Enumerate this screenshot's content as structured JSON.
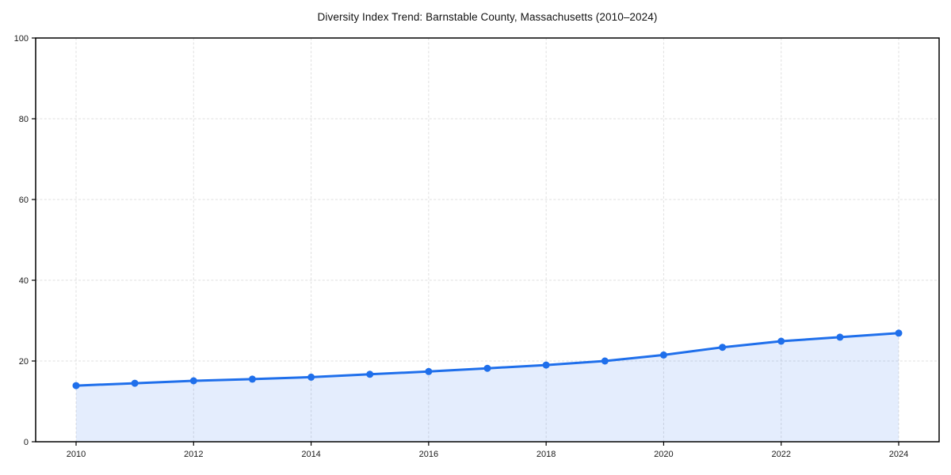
{
  "chart_data": {
    "type": "area",
    "title": "Diversity Index Trend: Barnstable County, Massachusetts (2010–2024)",
    "xlabel": "",
    "ylabel": "",
    "x": [
      2010,
      2011,
      2012,
      2013,
      2014,
      2015,
      2016,
      2017,
      2018,
      2019,
      2020,
      2021,
      2022,
      2023,
      2024
    ],
    "series": [
      {
        "name": "Diversity Index",
        "values": [
          13.9,
          14.5,
          15.1,
          15.5,
          16.0,
          16.7,
          17.4,
          18.2,
          19.0,
          20.0,
          21.5,
          23.4,
          24.9,
          25.9,
          26.9
        ]
      }
    ],
    "ylim": [
      0,
      100
    ],
    "yticks": [
      0,
      20,
      40,
      60,
      80,
      100
    ],
    "xticks": [
      2010,
      2012,
      2014,
      2016,
      2018,
      2020,
      2022,
      2024
    ],
    "grid": true,
    "legend_position": "none",
    "colors": {
      "line": "#1f6feb",
      "marker": "#1f6feb",
      "fill": "#1f6feb",
      "fill_opacity": 0.12,
      "gridline": "#dcdcdc",
      "spine": "#000000",
      "tick_label": "#1a1a1a",
      "title": "#111111",
      "background": "#ffffff"
    }
  }
}
